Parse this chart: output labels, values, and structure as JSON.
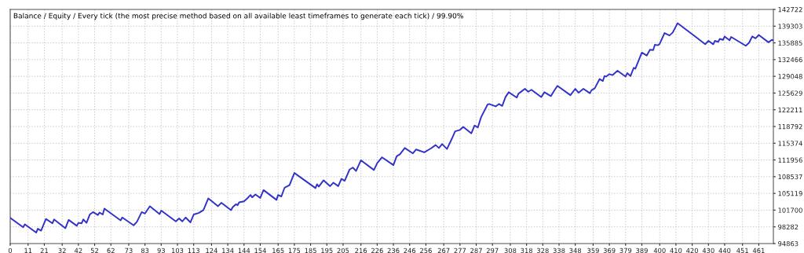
{
  "chart_data": {
    "type": "line",
    "title": "Balance / Equity / Every tick (the most precise method based on all available least timeframes to generate each tick) / 99.90%",
    "grid": true,
    "line_style": "solid",
    "marker": "none",
    "xlim": [
      0,
      470
    ],
    "ylim": [
      94863,
      142722
    ],
    "xticks": [
      0,
      11,
      21,
      32,
      42,
      52,
      62,
      73,
      83,
      93,
      103,
      113,
      124,
      134,
      144,
      154,
      165,
      175,
      185,
      195,
      205,
      216,
      226,
      236,
      246,
      256,
      267,
      277,
      287,
      297,
      308,
      318,
      328,
      338,
      348,
      359,
      369,
      379,
      389,
      400,
      410,
      420,
      430,
      440,
      451,
      461
    ],
    "yticks": [
      94863,
      98282,
      101700,
      105119,
      108537,
      111956,
      115374,
      118792,
      122211,
      125629,
      129048,
      132466,
      135885,
      139303,
      142722
    ],
    "series": [
      {
        "color": "#3232c8",
        "x": [
          0,
          8,
          9,
          16,
          17,
          19,
          22,
          26,
          27,
          34,
          36,
          41,
          42,
          44,
          45,
          47,
          49,
          51,
          54,
          55,
          57,
          58,
          68,
          69,
          76,
          78,
          81,
          83,
          86,
          92,
          93,
          102,
          104,
          106,
          108,
          111,
          113,
          116,
          119,
          122,
          128,
          130,
          136,
          137,
          139,
          140,
          141,
          144,
          146,
          148,
          149,
          151,
          154,
          156,
          164,
          165,
          167,
          169,
          172,
          175,
          188,
          189,
          190,
          193,
          197,
          199,
          202,
          204,
          206,
          209,
          211,
          213,
          216,
          224,
          226,
          229,
          236,
          238,
          240,
          243,
          248,
          250,
          255,
          259,
          262,
          264,
          266,
          269,
          272,
          274,
          277,
          279,
          284,
          286,
          288,
          290,
          294,
          295,
          299,
          301,
          303,
          305,
          307,
          312,
          313,
          315,
          317,
          319,
          321,
          327,
          329,
          333,
          335,
          337,
          345,
          348,
          350,
          353,
          357,
          358,
          360,
          363,
          365,
          366,
          367,
          369,
          371,
          374,
          379,
          380,
          382,
          384,
          385,
          389,
          392,
          394,
          396,
          397,
          399,
          400,
          403,
          406,
          408,
          411,
          423,
          428,
          430,
          433,
          434,
          436,
          437,
          439,
          440,
          443,
          444,
          453,
          455,
          457,
          459,
          461,
          467,
          469,
          470
        ],
        "values": [
          100100,
          98200,
          98800,
          97100,
          97900,
          97500,
          99900,
          99000,
          99800,
          98000,
          99700,
          98500,
          99100,
          99000,
          99800,
          99100,
          100800,
          101300,
          100700,
          101200,
          100800,
          102000,
          99600,
          100200,
          98600,
          99300,
          101300,
          101000,
          102500,
          100900,
          101600,
          99400,
          100000,
          99400,
          100200,
          99200,
          100800,
          101100,
          101700,
          104100,
          102500,
          103200,
          101700,
          102300,
          102900,
          102700,
          103300,
          103500,
          104100,
          104800,
          104300,
          104900,
          104200,
          105800,
          103800,
          104800,
          104500,
          106300,
          106800,
          109300,
          106200,
          107000,
          106500,
          107800,
          106600,
          107300,
          106600,
          108100,
          107700,
          110000,
          110400,
          109700,
          111900,
          109900,
          111300,
          112500,
          110900,
          112700,
          113100,
          114400,
          113300,
          114100,
          113500,
          114300,
          115000,
          114400,
          115200,
          114200,
          116300,
          117800,
          118100,
          118700,
          117400,
          119000,
          118600,
          120700,
          123300,
          123400,
          122900,
          123400,
          123000,
          124800,
          125800,
          124700,
          125500,
          126000,
          126500,
          125900,
          126300,
          124800,
          125800,
          125000,
          126100,
          127100,
          125200,
          126500,
          125700,
          126500,
          125600,
          126200,
          126600,
          128500,
          128100,
          129100,
          129000,
          129500,
          129300,
          130200,
          129000,
          129700,
          129100,
          130800,
          130600,
          133900,
          133300,
          134500,
          134400,
          135500,
          135400,
          135700,
          137900,
          137400,
          138000,
          139900,
          136900,
          135600,
          136300,
          135600,
          136300,
          136100,
          136700,
          136500,
          137200,
          136400,
          137100,
          135300,
          135900,
          137200,
          136800,
          137500,
          136000,
          136500,
          136400
        ]
      }
    ]
  }
}
